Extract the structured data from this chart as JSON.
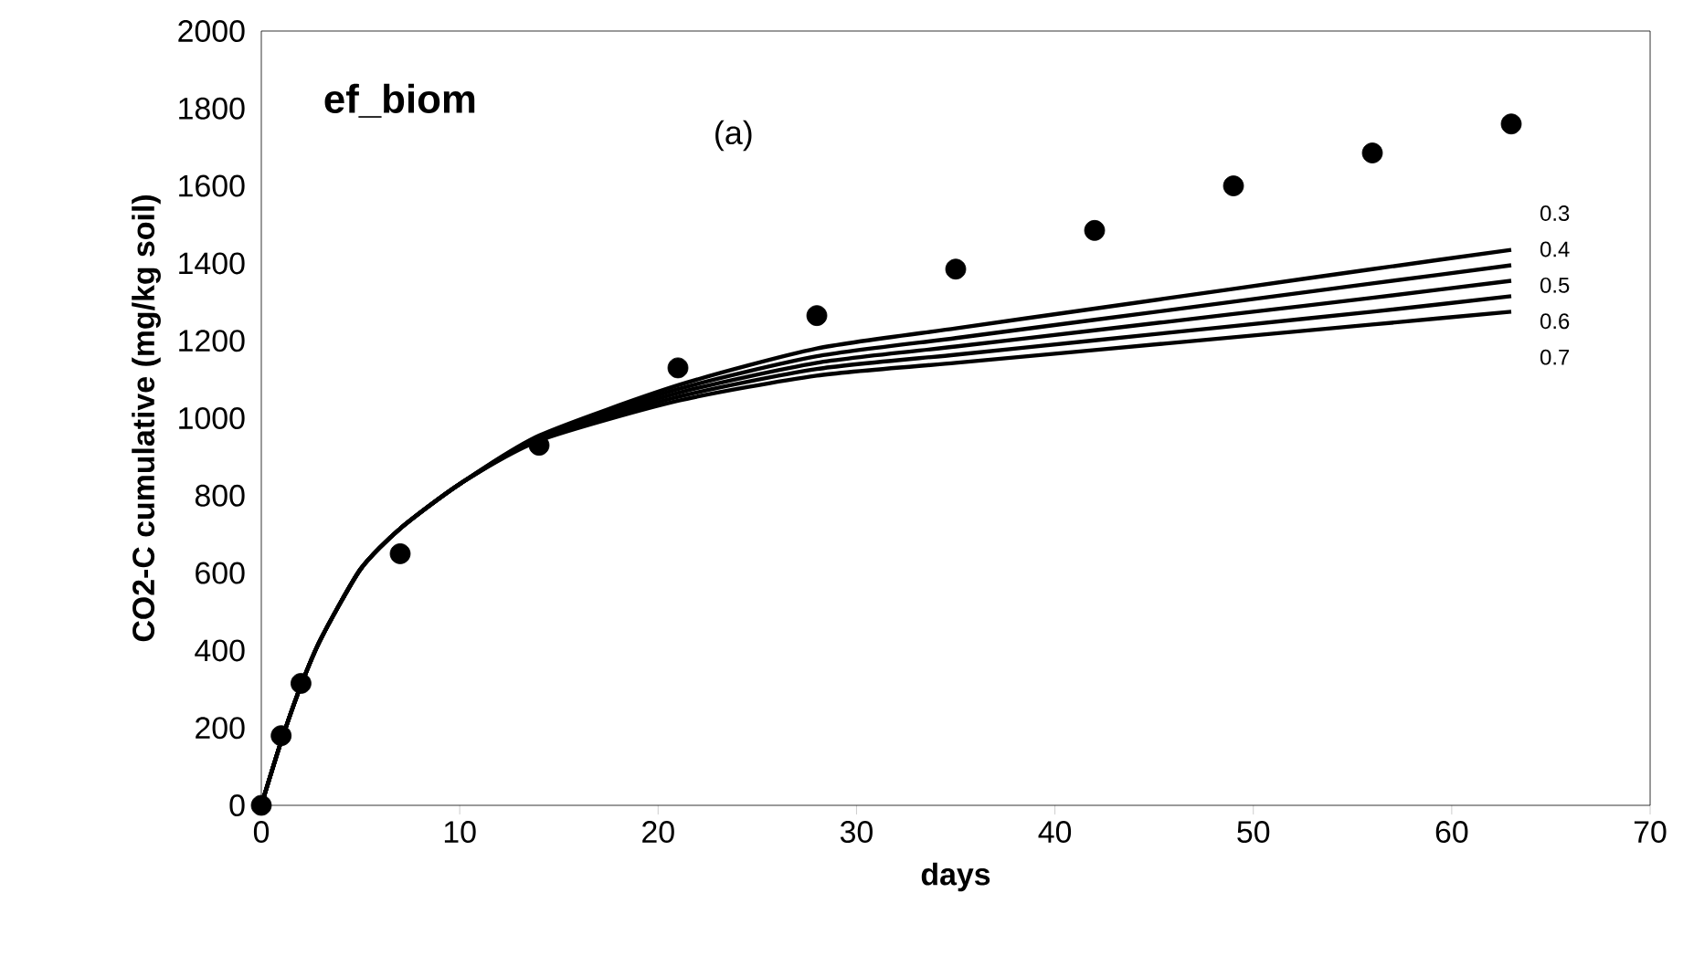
{
  "chart_data": {
    "type": "line",
    "title": "ef_biom",
    "xlabel": "days",
    "ylabel": "CO2-C cumulative (mg/kg soil)",
    "annotations": [
      "(a)"
    ],
    "xlim": [
      0,
      70
    ],
    "xticks": [
      0,
      10,
      20,
      30,
      40,
      50,
      60,
      70
    ],
    "ylim": [
      0,
      2000
    ],
    "yticks": [
      0,
      200,
      400,
      600,
      800,
      1000,
      1200,
      1400,
      1600,
      1800,
      2000
    ],
    "grid": false,
    "line_style": "solid",
    "series": [
      {
        "name": "0.3",
        "color": "#000000",
        "x": [
          0,
          1,
          2,
          3,
          5,
          7,
          10,
          14,
          21,
          28,
          35,
          42,
          49,
          56,
          63
        ],
        "values": [
          0,
          165,
          310,
          430,
          610,
          715,
          830,
          955,
          1085,
          1180,
          1232,
          1283,
          1334,
          1385,
          1435
        ]
      },
      {
        "name": "0.4",
        "color": "#000000",
        "x": [
          0,
          1,
          2,
          3,
          5,
          7,
          10,
          14,
          21,
          28,
          35,
          42,
          49,
          56,
          63
        ],
        "values": [
          0,
          165,
          310,
          430,
          610,
          715,
          830,
          952,
          1075,
          1160,
          1207,
          1254,
          1301,
          1348,
          1395
        ]
      },
      {
        "name": "0.5",
        "color": "#000000",
        "x": [
          0,
          1,
          2,
          3,
          5,
          7,
          10,
          14,
          21,
          28,
          35,
          42,
          49,
          56,
          63
        ],
        "values": [
          0,
          165,
          310,
          430,
          610,
          715,
          830,
          948,
          1065,
          1143,
          1185,
          1227,
          1269,
          1311,
          1355
        ]
      },
      {
        "name": "0.6",
        "color": "#000000",
        "x": [
          0,
          1,
          2,
          3,
          5,
          7,
          10,
          14,
          21,
          28,
          35,
          42,
          49,
          56,
          63
        ],
        "values": [
          0,
          165,
          310,
          430,
          610,
          715,
          830,
          945,
          1055,
          1127,
          1164,
          1201,
          1238,
          1275,
          1315
        ]
      },
      {
        "name": "0.7",
        "color": "#000000",
        "x": [
          0,
          1,
          2,
          3,
          5,
          7,
          10,
          14,
          21,
          28,
          35,
          42,
          49,
          56,
          63
        ],
        "values": [
          0,
          165,
          310,
          430,
          610,
          715,
          830,
          942,
          1045,
          1110,
          1143,
          1176,
          1209,
          1242,
          1275
        ]
      },
      {
        "type": "scatter",
        "marker": "circle",
        "color": "#000000",
        "x": [
          0,
          1,
          2,
          7,
          14,
          21,
          28,
          35,
          42,
          49,
          56,
          63
        ],
        "values": [
          0,
          180,
          315,
          650,
          930,
          1130,
          1265,
          1385,
          1485,
          1600,
          1685,
          1760
        ]
      }
    ]
  }
}
